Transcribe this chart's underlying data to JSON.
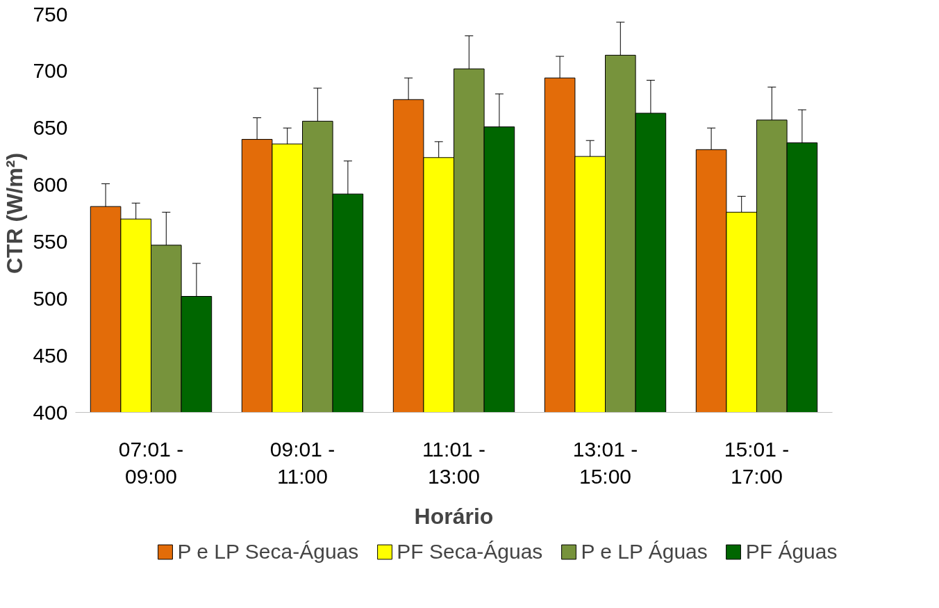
{
  "chart_data": {
    "type": "bar",
    "xlabel": "Horário",
    "ylabel": "CTR (W/m²)",
    "categories": [
      "07:01 - 09:00",
      "09:01 - 11:00",
      "11:01 - 13:00",
      "13:01 - 15:00",
      "15:01 - 17:00"
    ],
    "series": [
      {
        "name": "P e LP Seca-Águas",
        "color": "#e36c09",
        "values": [
          581,
          640,
          675,
          694,
          631
        ],
        "errors": [
          20,
          19,
          19,
          19,
          19
        ]
      },
      {
        "name": "PF Seca-Águas",
        "color": "#ffff00",
        "values": [
          570,
          636,
          624,
          625,
          576
        ],
        "errors": [
          14,
          14,
          14,
          14,
          14
        ]
      },
      {
        "name": "P e LP Águas",
        "color": "#77933c",
        "values": [
          547,
          656,
          702,
          714,
          657
        ],
        "errors": [
          29,
          29,
          29,
          29,
          29
        ]
      },
      {
        "name": "PF Águas",
        "color": "#006600",
        "values": [
          502,
          592,
          651,
          663,
          637
        ],
        "errors": [
          29,
          29,
          29,
          29,
          29
        ]
      }
    ],
    "ylim": [
      400,
      750
    ],
    "yticks": [
      400,
      450,
      500,
      550,
      600,
      650,
      700,
      750
    ],
    "grid": false,
    "legend": "bottom"
  }
}
